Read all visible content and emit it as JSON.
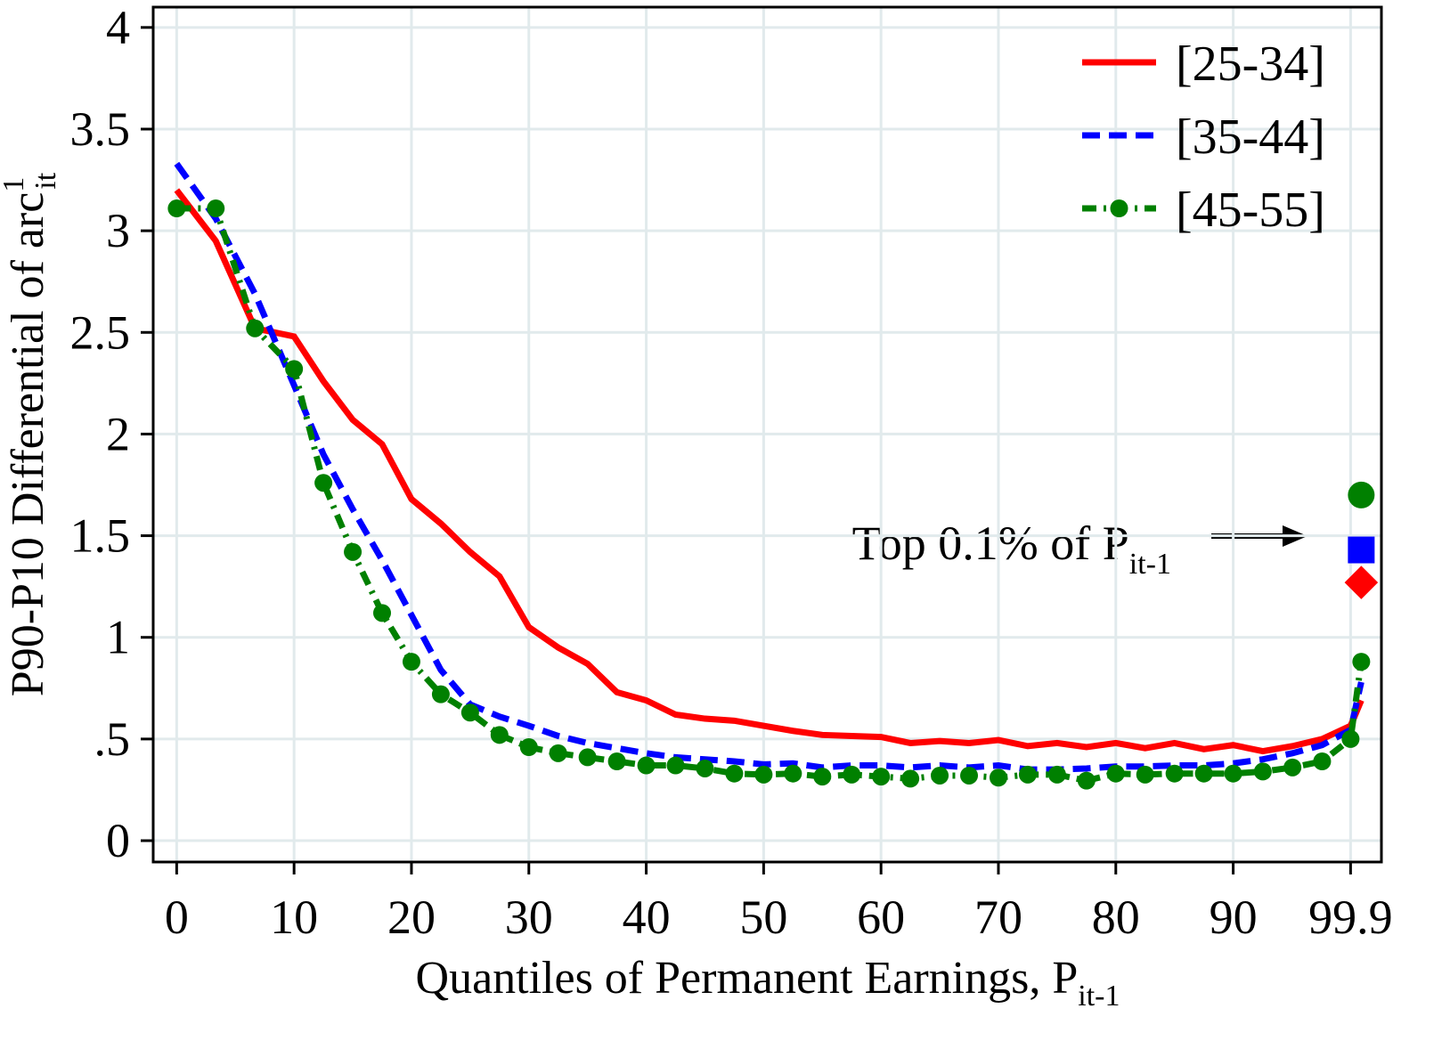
{
  "chart_data": {
    "type": "line",
    "y_label": "P90-P10 Differential of arc",
    "y_label_sup": "1",
    "y_label_sub": "it",
    "x_label": "Quantiles of Permanent Earnings, P",
    "x_label_sub": "it-1",
    "annotation": "Top 0.1% of P",
    "annotation_sub": "it-1",
    "x": [
      0,
      3.33,
      6.67,
      10,
      12.5,
      15,
      17.5,
      20,
      22.5,
      25,
      27.5,
      30,
      32.5,
      35,
      37.5,
      40,
      42.5,
      45,
      47.5,
      50,
      52.5,
      55,
      57.5,
      60,
      62.5,
      65,
      67.5,
      70,
      72.5,
      75,
      77.5,
      80,
      82.5,
      85,
      87.5,
      90,
      92.5,
      95,
      97.5,
      99.9,
      100.8
    ],
    "top_x": 100.8,
    "series": [
      {
        "name": "[25-34]",
        "color": "#ff0000",
        "style": "solid",
        "marker": "diamond",
        "top_value": 1.27,
        "values": [
          3.2,
          2.95,
          2.52,
          2.48,
          2.26,
          2.07,
          1.95,
          1.68,
          1.56,
          1.42,
          1.3,
          1.05,
          0.95,
          0.87,
          0.73,
          0.69,
          0.62,
          0.6,
          0.59,
          0.565,
          0.54,
          0.52,
          0.515,
          0.51,
          0.48,
          0.49,
          0.48,
          0.495,
          0.465,
          0.48,
          0.46,
          0.48,
          0.455,
          0.48,
          0.45,
          0.47,
          0.44,
          0.465,
          0.5,
          0.565,
          0.69
        ]
      },
      {
        "name": "[35-44]",
        "color": "#0000ff",
        "style": "dash",
        "marker": "square",
        "top_value": 1.43,
        "values": [
          3.33,
          3.06,
          2.69,
          2.24,
          1.9,
          1.63,
          1.38,
          1.11,
          0.84,
          0.67,
          0.61,
          0.565,
          0.515,
          0.48,
          0.455,
          0.43,
          0.41,
          0.4,
          0.39,
          0.375,
          0.38,
          0.36,
          0.37,
          0.37,
          0.36,
          0.37,
          0.36,
          0.37,
          0.35,
          0.35,
          0.355,
          0.365,
          0.365,
          0.37,
          0.37,
          0.38,
          0.4,
          0.43,
          0.47,
          0.545,
          0.78
        ]
      },
      {
        "name": "[45-55]",
        "color": "#008000",
        "style": "dash-dot",
        "marker": "circle",
        "top_value": 1.7,
        "values": [
          3.11,
          3.11,
          2.52,
          2.32,
          1.76,
          1.42,
          1.12,
          0.88,
          0.72,
          0.63,
          0.52,
          0.46,
          0.43,
          0.41,
          0.39,
          0.37,
          0.37,
          0.355,
          0.33,
          0.325,
          0.33,
          0.315,
          0.325,
          0.315,
          0.305,
          0.32,
          0.32,
          0.31,
          0.325,
          0.325,
          0.295,
          0.33,
          0.325,
          0.33,
          0.33,
          0.33,
          0.34,
          0.36,
          0.39,
          0.5,
          0.88
        ]
      }
    ],
    "xlim": [
      -2,
      102.5
    ],
    "xticks": [
      0,
      10,
      20,
      30,
      40,
      50,
      60,
      70,
      80,
      90,
      99.9
    ],
    "ylim": [
      -0.105,
      4.1
    ],
    "yticks": [
      0,
      {
        "value": 0.5,
        "label": ".5"
      },
      1,
      1.5,
      2,
      2.5,
      3,
      3.5,
      4
    ],
    "grid": true,
    "legend": "top-right"
  }
}
